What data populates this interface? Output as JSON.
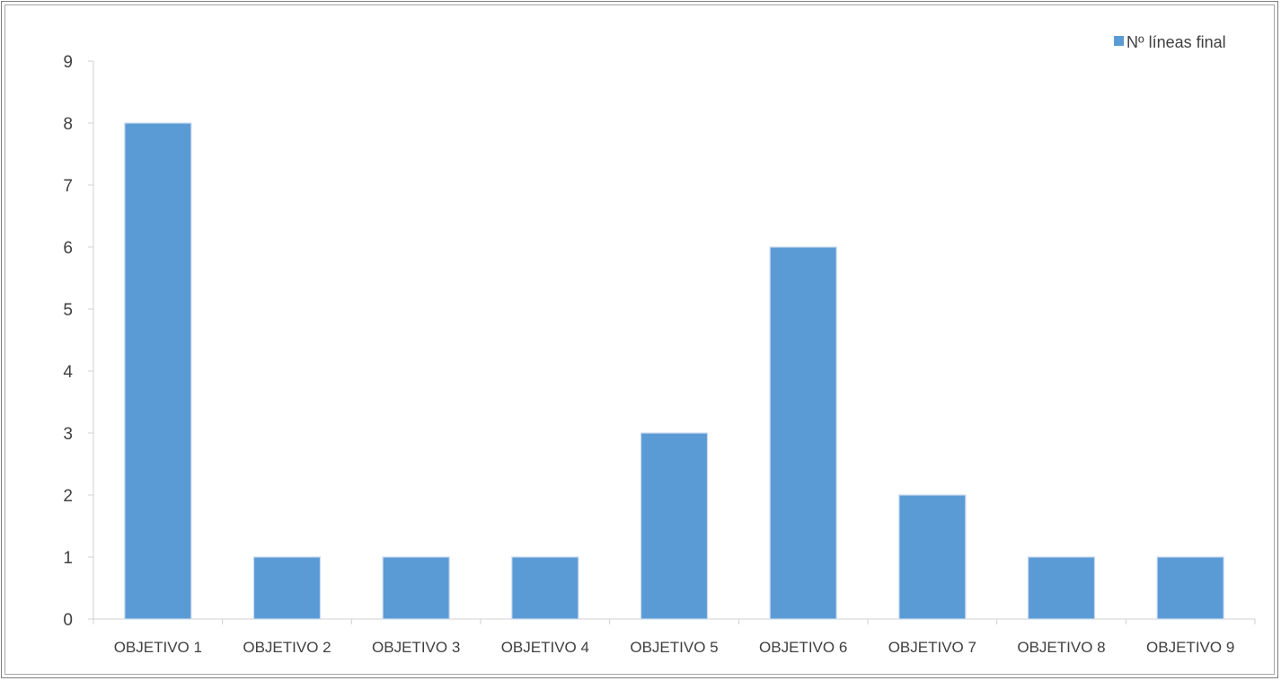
{
  "chart_data": {
    "type": "bar",
    "categories": [
      "OBJETIVO 1",
      "OBJETIVO 2",
      "OBJETIVO 3",
      "OBJETIVO 4",
      "OBJETIVO 5",
      "OBJETIVO 6",
      "OBJETIVO 7",
      "OBJETIVO 8",
      "OBJETIVO 9"
    ],
    "series": [
      {
        "name": "Nº líneas final",
        "values": [
          8,
          1,
          1,
          1,
          3,
          6,
          2,
          1,
          1
        ],
        "color": "#5b9bd5"
      }
    ],
    "title": "",
    "xlabel": "",
    "ylabel": "",
    "ylim": [
      0,
      9
    ],
    "yticks": [
      "0",
      "1",
      "2",
      "3",
      "4",
      "5",
      "6",
      "7",
      "8",
      "9"
    ],
    "grid": false,
    "legend_position": "top-right"
  }
}
